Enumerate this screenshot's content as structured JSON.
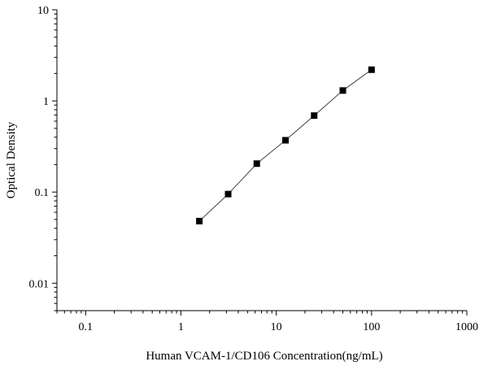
{
  "chart_data": {
    "type": "scatter",
    "title": "",
    "xlabel": "Human VCAM-1/CD106 Concentration(ng/mL)",
    "ylabel": "Optical Density",
    "x_scale": "log",
    "y_scale": "log",
    "xlim": [
      0.05,
      1000
    ],
    "ylim": [
      0.005,
      10
    ],
    "x_ticks": [
      0.1,
      1,
      10,
      100,
      1000
    ],
    "x_tick_labels": [
      "0.1",
      "1",
      "10",
      "100",
      "1000"
    ],
    "y_ticks": [
      0.01,
      0.1,
      1,
      10
    ],
    "y_tick_labels": [
      "0.01",
      "0.1",
      "1",
      "10"
    ],
    "grid": false,
    "legend": false,
    "marker": "square",
    "series": [
      {
        "x": [
          1.56,
          3.13,
          6.25,
          12.5,
          25,
          50,
          100
        ],
        "y": [
          0.048,
          0.095,
          0.205,
          0.37,
          0.69,
          1.3,
          2.2
        ],
        "color": "#000000",
        "line": true
      }
    ]
  }
}
